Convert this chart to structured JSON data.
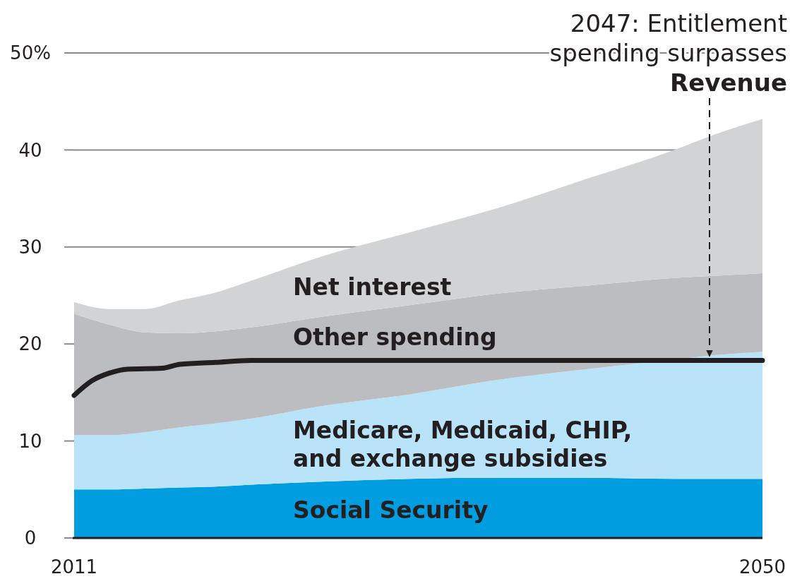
{
  "chart_data": {
    "type": "area",
    "stacked": true,
    "x": [
      2011,
      2013,
      2015,
      2017,
      2019,
      2021,
      2025,
      2030,
      2035,
      2040,
      2045,
      2047,
      2050
    ],
    "series": [
      {
        "name": "Social Security",
        "color": "#009ee0",
        "values": [
          5.0,
          5.0,
          5.1,
          5.2,
          5.3,
          5.5,
          5.8,
          6.1,
          6.2,
          6.2,
          6.1,
          6.1,
          6.1
        ]
      },
      {
        "name": "Medicare, Medicaid, CHIP, and exchange subsidies",
        "color": "#b9e3f9",
        "values": [
          5.6,
          5.6,
          5.8,
          6.2,
          6.5,
          6.8,
          7.8,
          8.7,
          10.1,
          11.2,
          12.3,
          12.7,
          13.1
        ]
      },
      {
        "name": "Other spending",
        "color": "#bcbdc0",
        "values": [
          12.5,
          11.4,
          10.3,
          9.7,
          9.5,
          9.4,
          9.2,
          9.2,
          8.9,
          8.6,
          8.4,
          8.2,
          8.1
        ]
      },
      {
        "name": "Net interest",
        "color": "#d2d3d5",
        "values": [
          1.2,
          1.6,
          2.4,
          3.4,
          4.0,
          4.8,
          6.2,
          7.5,
          8.8,
          11.0,
          13.2,
          14.4,
          15.9
        ]
      },
      {
        "type": "line",
        "color": "#231f20",
        "x": [
          2011,
          2012,
          2013,
          2014,
          2016,
          2017,
          2019,
          2021,
          2030,
          2050
        ],
        "values": [
          14.7,
          16.2,
          17.0,
          17.4,
          17.5,
          17.9,
          18.1,
          18.3,
          18.3,
          18.3
        ]
      }
    ],
    "xlim": [
      2011,
      2050
    ],
    "xticks": [
      2011,
      2050
    ],
    "ylim": [
      0,
      50
    ],
    "yticks": [
      0,
      10,
      20,
      30,
      40,
      {
        "value": 50,
        "label": "50%"
      }
    ],
    "grid": "y",
    "legend": false,
    "marker": "none",
    "ref_lines": [
      {
        "axis": "x",
        "value": 2047,
        "label": "2047: Entitlement spending surpasses Revenue",
        "line_style": "dashed",
        "color": "#231f20"
      }
    ]
  }
}
